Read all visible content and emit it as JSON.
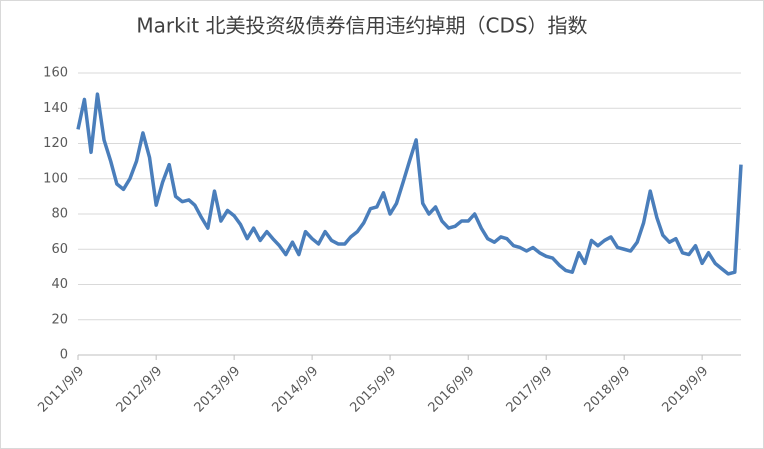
{
  "chart_data": {
    "type": "line",
    "title": "Markit 北美投资级债券信用违约掉期（CDS）指数",
    "x": [
      "2011/9/9",
      "2011/10/9",
      "2011/11/9",
      "2011/12/9",
      "2012/1/9",
      "2012/2/9",
      "2012/3/9",
      "2012/4/9",
      "2012/5/9",
      "2012/6/9",
      "2012/7/9",
      "2012/8/9",
      "2012/9/9",
      "2012/10/9",
      "2012/11/9",
      "2012/12/9",
      "2013/1/9",
      "2013/2/9",
      "2013/3/9",
      "2013/4/9",
      "2013/5/9",
      "2013/6/9",
      "2013/7/9",
      "2013/8/9",
      "2013/9/9",
      "2013/10/9",
      "2013/11/9",
      "2013/12/9",
      "2014/1/9",
      "2014/2/9",
      "2014/3/9",
      "2014/4/9",
      "2014/5/9",
      "2014/6/9",
      "2014/7/9",
      "2014/8/9",
      "2014/9/9",
      "2014/10/9",
      "2014/11/9",
      "2014/12/9",
      "2015/1/9",
      "2015/2/9",
      "2015/3/9",
      "2015/4/9",
      "2015/5/9",
      "2015/6/9",
      "2015/7/9",
      "2015/8/9",
      "2015/9/9",
      "2015/10/9",
      "2015/11/9",
      "2015/12/9",
      "2016/1/9",
      "2016/2/9",
      "2016/3/9",
      "2016/4/9",
      "2016/5/9",
      "2016/6/9",
      "2016/7/9",
      "2016/8/9",
      "2016/9/9",
      "2016/10/9",
      "2016/11/9",
      "2016/12/9",
      "2017/1/9",
      "2017/2/9",
      "2017/3/9",
      "2017/4/9",
      "2017/5/9",
      "2017/6/9",
      "2017/7/9",
      "2017/8/9",
      "2017/9/9",
      "2017/10/9",
      "2017/11/9",
      "2017/12/9",
      "2018/1/9",
      "2018/2/9",
      "2018/3/9",
      "2018/4/9",
      "2018/5/9",
      "2018/6/9",
      "2018/7/9",
      "2018/8/9",
      "2018/9/9",
      "2018/10/9",
      "2018/11/9",
      "2018/12/9",
      "2019/1/9",
      "2019/2/9",
      "2019/3/9",
      "2019/4/9",
      "2019/5/9",
      "2019/6/9",
      "2019/7/9",
      "2019/8/9",
      "2019/9/9",
      "2019/10/9",
      "2019/11/9",
      "2019/12/9",
      "2020/1/9",
      "2020/2/9",
      "2020/3/9"
    ],
    "series": [
      {
        "name": "CDS",
        "color": "#4a7ebb",
        "values": [
          128,
          145,
          115,
          148,
          122,
          110,
          97,
          94,
          100,
          110,
          126,
          112,
          85,
          98,
          108,
          90,
          87,
          88,
          85,
          78,
          72,
          93,
          76,
          82,
          79,
          74,
          66,
          72,
          65,
          70,
          66,
          62,
          57,
          64,
          57,
          70,
          66,
          63,
          70,
          65,
          63,
          63,
          67,
          70,
          75,
          83,
          84,
          92,
          80,
          86,
          98,
          110,
          122,
          86,
          80,
          84,
          76,
          72,
          73,
          76,
          76,
          80,
          72,
          66,
          64,
          67,
          66,
          62,
          61,
          59,
          61,
          58,
          56,
          55,
          51,
          48,
          47,
          58,
          52,
          65,
          62,
          65,
          67,
          61,
          60,
          59,
          64,
          75,
          93,
          78,
          68,
          64,
          66,
          58,
          57,
          62,
          52,
          58,
          52,
          49,
          46,
          47,
          108
        ]
      }
    ],
    "xlim": [
      "2011/9/9",
      "2020/3/9"
    ],
    "xticks": [
      "2011/9/9",
      "2012/9/9",
      "2013/9/9",
      "2014/9/9",
      "2015/9/9",
      "2016/9/9",
      "2017/9/9",
      "2018/9/9",
      "2019/9/9"
    ],
    "ylim": [
      0,
      160
    ],
    "yticks": [
      0,
      20,
      40,
      60,
      80,
      100,
      120,
      140,
      160
    ],
    "grid": true
  }
}
